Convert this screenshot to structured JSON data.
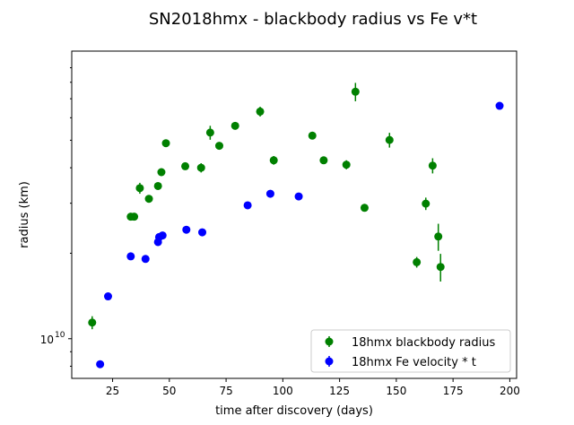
{
  "chart_data": {
    "type": "scatter",
    "title": "SN2018hmx - blackbody radius vs Fe v*t",
    "xlabel": "time after discovery (days)",
    "ylabel": "radius (km)",
    "xlim": [
      7,
      203
    ],
    "ylim": [
      7250000000.0,
      103000000000.0
    ],
    "yscale": "log",
    "grid": false,
    "legend_position": "lower-right",
    "x_ticks": [
      {
        "value": 25,
        "label": "25"
      },
      {
        "value": 50,
        "label": "50"
      },
      {
        "value": 75,
        "label": "75"
      },
      {
        "value": 100,
        "label": "100"
      },
      {
        "value": 125,
        "label": "125"
      },
      {
        "value": 150,
        "label": "150"
      },
      {
        "value": 175,
        "label": "175"
      },
      {
        "value": 200,
        "label": "200"
      }
    ],
    "y_major_ticks": [
      {
        "value": 10000000000.0,
        "label_base": "10",
        "label_exp": "10"
      }
    ],
    "series": [
      {
        "name": "18hmx blackbody radius",
        "color": "#008000",
        "points": [
          {
            "x": 16,
            "y": 11400000000.0,
            "err": 600000000.0
          },
          {
            "x": 33,
            "y": 26900000000.0,
            "err": 800000000.0
          },
          {
            "x": 34.5,
            "y": 26900000000.0,
            "err": 800000000.0
          },
          {
            "x": 37,
            "y": 33900000000.0,
            "err": 1500000000.0
          },
          {
            "x": 41,
            "y": 31100000000.0,
            "err": 800000000.0
          },
          {
            "x": 45,
            "y": 34500000000.0,
            "err": 1000000000.0
          },
          {
            "x": 46.5,
            "y": 38600000000.0,
            "err": 1200000000.0
          },
          {
            "x": 48.5,
            "y": 48800000000.0,
            "err": 1200000000.0
          },
          {
            "x": 57,
            "y": 40500000000.0,
            "err": 1000000000.0
          },
          {
            "x": 64,
            "y": 40000000000.0,
            "err": 1500000000.0
          },
          {
            "x": 68,
            "y": 53200000000.0,
            "err": 3000000000.0
          },
          {
            "x": 72,
            "y": 47800000000.0,
            "err": 1200000000.0
          },
          {
            "x": 79,
            "y": 56200000000.0,
            "err": 1200000000.0
          },
          {
            "x": 90,
            "y": 63100000000.0,
            "err": 2500000000.0
          },
          {
            "x": 96,
            "y": 42500000000.0,
            "err": 1500000000.0
          },
          {
            "x": 113,
            "y": 51900000000.0,
            "err": 1200000000.0
          },
          {
            "x": 118,
            "y": 42500000000.0,
            "err": 1000000000.0
          },
          {
            "x": 128,
            "y": 41000000000.0,
            "err": 1500000000.0
          },
          {
            "x": 132,
            "y": 74100000000.0,
            "err": 5500000000.0
          },
          {
            "x": 136,
            "y": 28900000000.0,
            "err": 800000000.0
          },
          {
            "x": 147,
            "y": 50100000000.0,
            "err": 3000000000.0
          },
          {
            "x": 159,
            "y": 18600000000.0,
            "err": 800000000.0
          },
          {
            "x": 163,
            "y": 29900000000.0,
            "err": 1500000000.0
          },
          {
            "x": 166,
            "y": 40700000000.0,
            "err": 2500000000.0
          },
          {
            "x": 168.5,
            "y": 22900000000.0,
            "err": 2500000000.0
          },
          {
            "x": 169.5,
            "y": 17900000000.0,
            "err": 2000000000.0
          }
        ]
      },
      {
        "name": "18hmx Fe velocity * t",
        "color": "#0000ff",
        "points": [
          {
            "x": 19.5,
            "y": 8130000000.0
          },
          {
            "x": 23,
            "y": 14100000000.0
          },
          {
            "x": 33,
            "y": 19500000000.0
          },
          {
            "x": 39.5,
            "y": 19100000000.0
          },
          {
            "x": 45,
            "y": 21900000000.0
          },
          {
            "x": 45.5,
            "y": 22800000000.0
          },
          {
            "x": 47,
            "y": 23100000000.0
          },
          {
            "x": 57.5,
            "y": 24200000000.0
          },
          {
            "x": 64.5,
            "y": 23700000000.0
          },
          {
            "x": 84.5,
            "y": 29500000000.0
          },
          {
            "x": 94.5,
            "y": 32400000000.0
          },
          {
            "x": 107,
            "y": 31700000000.0
          },
          {
            "x": 195.5,
            "y": 66100000000.0
          }
        ]
      }
    ]
  }
}
